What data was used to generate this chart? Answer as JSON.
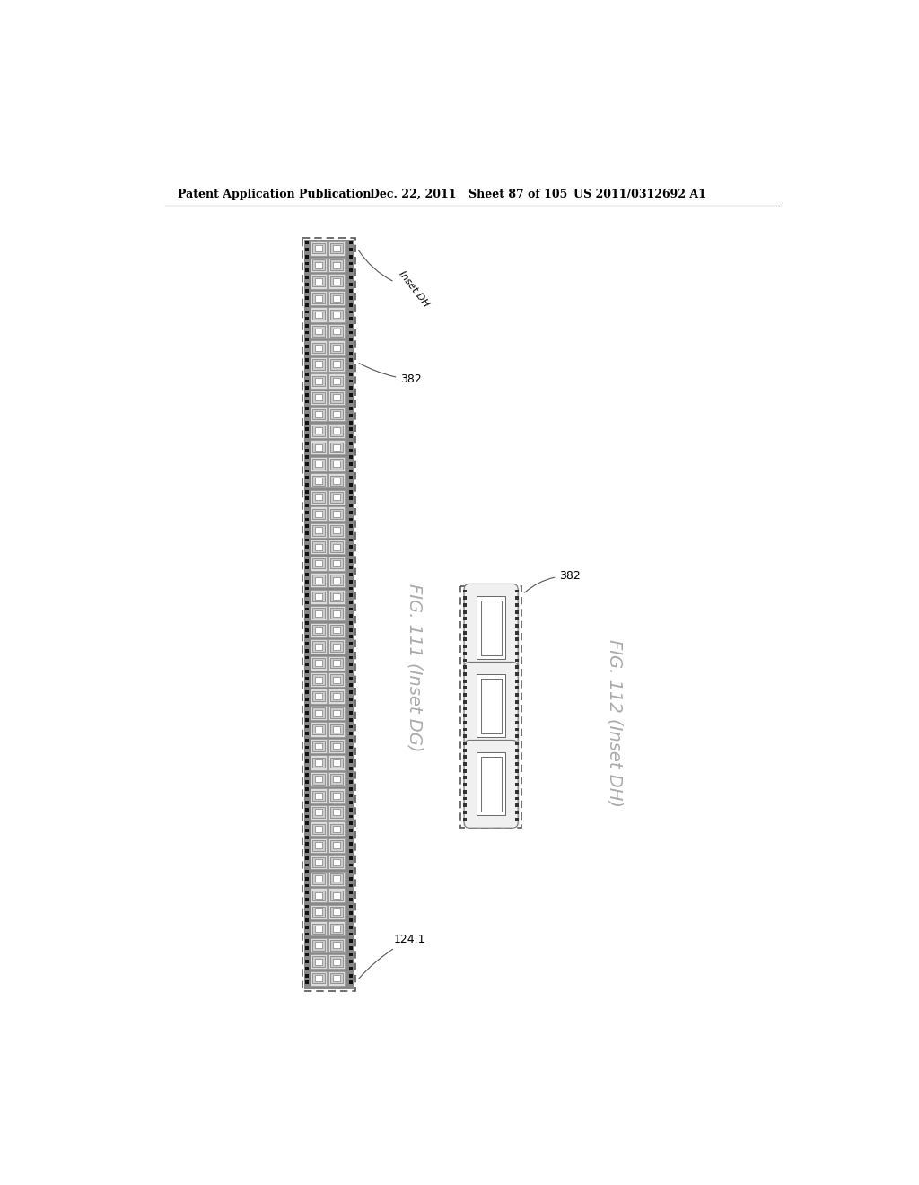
{
  "header_text": "Patent Application Publication",
  "header_date": "Dec. 22, 2011",
  "header_sheet": "Sheet 87 of 105",
  "header_patent": "US 2011/0312692 A1",
  "fig111_label": "FIG. 111 (Inset DG)",
  "fig112_label": "FIG. 112 (Inset DH)",
  "label_382_left": "382",
  "label_124_1": "124.1",
  "label_inset_dh": "Inset DH",
  "label_382_right": "382",
  "bg_color": "#ffffff"
}
